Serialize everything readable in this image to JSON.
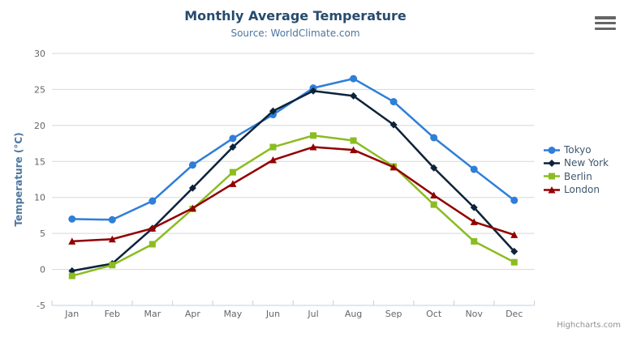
{
  "chart": {
    "title": "Monthly Average Temperature",
    "subtitle": "Source: WorldClimate.com",
    "credits": "Highcharts.com",
    "export_menu_icon": "hamburger-icon"
  },
  "colors": {
    "background": "#ffffff",
    "title": "#274b6d",
    "subtitle": "#4d759e",
    "axis_title": "#4d759e",
    "axis_labels": "#666666",
    "gridline": "#d8d8d8",
    "axis_line": "#c0d0e0",
    "legend_text": "#3e576f",
    "credits": "#909090",
    "menu_icon": "#666666"
  },
  "chart_data": {
    "type": "line",
    "title": "Monthly Average Temperature",
    "subtitle": "Source: WorldClimate.com",
    "categories": [
      "Jan",
      "Feb",
      "Mar",
      "Apr",
      "May",
      "Jun",
      "Jul",
      "Aug",
      "Sep",
      "Oct",
      "Nov",
      "Dec"
    ],
    "xlabel": "",
    "ylabel": "Temperature (°C)",
    "ylim": [
      -5,
      30
    ],
    "ytick_interval": 5,
    "grid": true,
    "legend_position": "right",
    "series": [
      {
        "name": "Tokyo",
        "color": "#2f7ed8",
        "marker": "circle",
        "values": [
          7.0,
          6.9,
          9.5,
          14.5,
          18.2,
          21.5,
          25.2,
          26.5,
          23.3,
          18.3,
          13.9,
          9.6
        ]
      },
      {
        "name": "New York",
        "color": "#0d233a",
        "marker": "diamond",
        "values": [
          -0.2,
          0.8,
          5.7,
          11.3,
          17.0,
          22.0,
          24.8,
          24.1,
          20.1,
          14.1,
          8.6,
          2.5
        ]
      },
      {
        "name": "Berlin",
        "color": "#8bbc21",
        "marker": "square",
        "values": [
          -0.9,
          0.6,
          3.5,
          8.4,
          13.5,
          17.0,
          18.6,
          17.9,
          14.3,
          9.0,
          3.9,
          1.0
        ]
      },
      {
        "name": "London",
        "color": "#910000",
        "marker": "triangle",
        "values": [
          3.9,
          4.2,
          5.7,
          8.5,
          11.9,
          15.2,
          17.0,
          16.6,
          14.2,
          10.3,
          6.6,
          4.8
        ]
      }
    ]
  }
}
